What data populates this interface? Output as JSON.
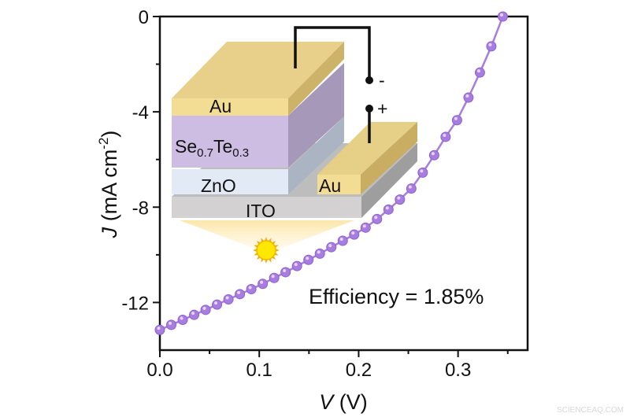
{
  "chart_data": {
    "type": "line",
    "title": "",
    "xlabel": {
      "var": "V",
      "unit": " (V)"
    },
    "ylabel": {
      "var": "J",
      "unit_pre": " (mA cm",
      "sup": "-2",
      "unit_post": ")"
    },
    "xlim": [
      0,
      0.37
    ],
    "ylim": [
      -14,
      0
    ],
    "xticks": [
      {
        "v": 0.0,
        "label": "0.0"
      },
      {
        "v": 0.1,
        "label": "0.1"
      },
      {
        "v": 0.2,
        "label": "0.2"
      },
      {
        "v": 0.3,
        "label": "0.3"
      }
    ],
    "yticks": [
      {
        "v": 0,
        "label": "0"
      },
      {
        "v": -4,
        "label": "-4"
      },
      {
        "v": -8,
        "label": "-8"
      },
      {
        "v": -12,
        "label": "-12"
      }
    ],
    "grid": false,
    "series": [
      {
        "color": "#a77de0",
        "marker": "circle",
        "x": [
          0,
          0.0115,
          0.023,
          0.0345,
          0.046,
          0.0575,
          0.069,
          0.0805,
          0.092,
          0.1035,
          0.115,
          0.1265,
          0.138,
          0.1495,
          0.161,
          0.1725,
          0.184,
          0.1955,
          0.207,
          0.2185,
          0.23,
          0.2415,
          0.253,
          0.2645,
          0.276,
          0.2875,
          0.299,
          0.3105,
          0.322,
          0.3335,
          0.345
        ],
        "y": [
          -13.15,
          -12.94,
          -12.73,
          -12.52,
          -12.31,
          -12.09,
          -11.87,
          -11.65,
          -11.44,
          -11.22,
          -10.97,
          -10.73,
          -10.47,
          -10.21,
          -9.95,
          -9.68,
          -9.41,
          -9.15,
          -8.86,
          -8.5,
          -8.1,
          -7.68,
          -7.22,
          -6.55,
          -5.82,
          -5.05,
          -4.35,
          -3.4,
          -2.35,
          -1.25,
          0
        ]
      }
    ],
    "annotations": {
      "efficiency": "Efficiency = 1.85%"
    }
  },
  "inset": {
    "layers": {
      "au_top": "Au",
      "se_base": "Se",
      "se_sub1": "0.7",
      "se_te": "Te",
      "se_sub2": "0.3",
      "zno": "ZnO",
      "au_pad": "Au",
      "ito": "ITO"
    },
    "terminals": {
      "minus": "-",
      "plus": "+"
    },
    "colors": {
      "au": "#f3dd95",
      "se": "#cdbde3",
      "zno": "#e2eaf6",
      "ito": "#cfcfcf",
      "sun": "#ffe800"
    }
  },
  "watermark": "SCIENCEAQ.COM"
}
